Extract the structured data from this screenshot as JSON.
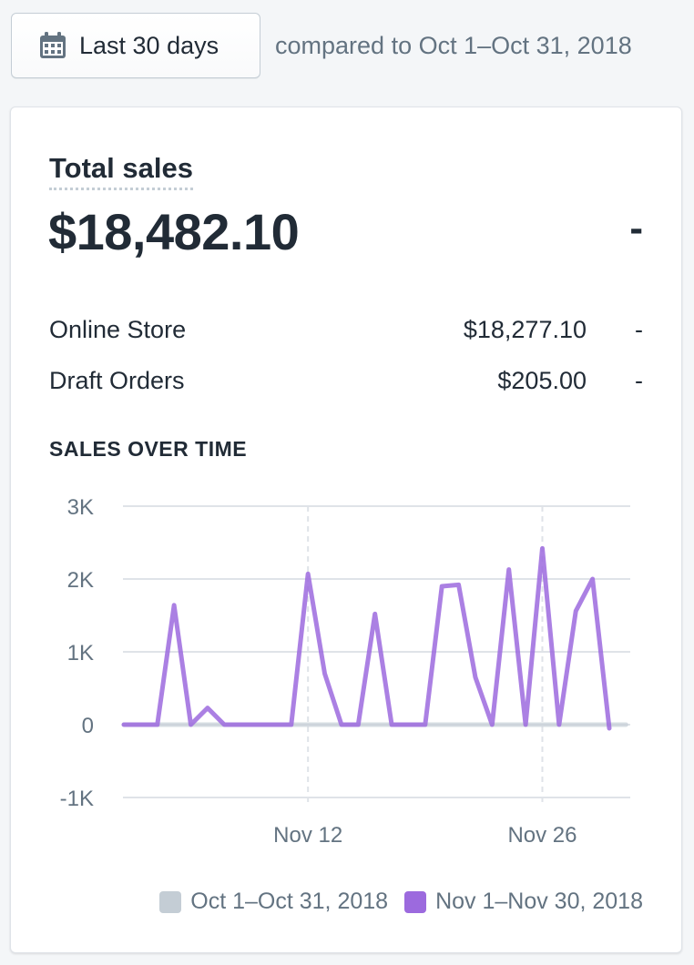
{
  "date_picker": {
    "label": "Last 30 days",
    "icon": "calendar-icon",
    "compare_text": "compared to Oct 1–Oct 31, 2018"
  },
  "card": {
    "title": "Total sales",
    "total": "$18,482.10",
    "total_delta": "-",
    "breakdown": [
      {
        "name": "Online Store",
        "amount": "$18,277.10",
        "delta": "-"
      },
      {
        "name": "Draft Orders",
        "amount": "$205.00",
        "delta": "-"
      }
    ],
    "section_heading": "SALES OVER TIME"
  },
  "colors": {
    "current_series": "#9c6ade",
    "previous_series": "#c4cdd5",
    "grid": "#dfe3e8",
    "text_muted": "#637381"
  },
  "chart_data": {
    "type": "line",
    "xlabel": "",
    "ylabel": "",
    "ylim": [
      -1000,
      3000
    ],
    "yticks": [
      "3K",
      "2K",
      "1K",
      "0",
      "-1K"
    ],
    "ytick_values": [
      3000,
      2000,
      1000,
      0,
      -1000
    ],
    "xticks": [
      {
        "label": "Nov 12",
        "day": 12
      },
      {
        "label": "Nov 26",
        "day": 26
      }
    ],
    "grid": true,
    "legend": "bottom-right",
    "series": [
      {
        "name": "Oct 1–Oct 31, 2018",
        "color": "#c4cdd5",
        "x": [
          1,
          2,
          3,
          4,
          5,
          6,
          7,
          8,
          9,
          10,
          11,
          12,
          13,
          14,
          15,
          16,
          17,
          18,
          19,
          20,
          21,
          22,
          23,
          24,
          25,
          26,
          27,
          28,
          29,
          30,
          31
        ],
        "values": [
          0,
          0,
          0,
          0,
          0,
          0,
          0,
          0,
          0,
          0,
          0,
          0,
          0,
          0,
          0,
          0,
          0,
          0,
          0,
          0,
          0,
          0,
          0,
          0,
          0,
          0,
          0,
          0,
          0,
          0,
          0
        ]
      },
      {
        "name": "Nov 1–Nov 30, 2018",
        "color": "#9c6ade",
        "x": [
          1,
          2,
          3,
          4,
          5,
          6,
          7,
          8,
          9,
          10,
          11,
          12,
          13,
          14,
          15,
          16,
          17,
          18,
          19,
          20,
          21,
          22,
          23,
          24,
          25,
          26,
          27,
          28,
          29,
          30
        ],
        "values": [
          0,
          0,
          0,
          1640,
          0,
          230,
          0,
          0,
          0,
          0,
          0,
          2070,
          700,
          0,
          0,
          1520,
          0,
          0,
          0,
          1900,
          1920,
          650,
          0,
          2130,
          0,
          2420,
          0,
          1560,
          2000,
          -50
        ]
      }
    ]
  }
}
